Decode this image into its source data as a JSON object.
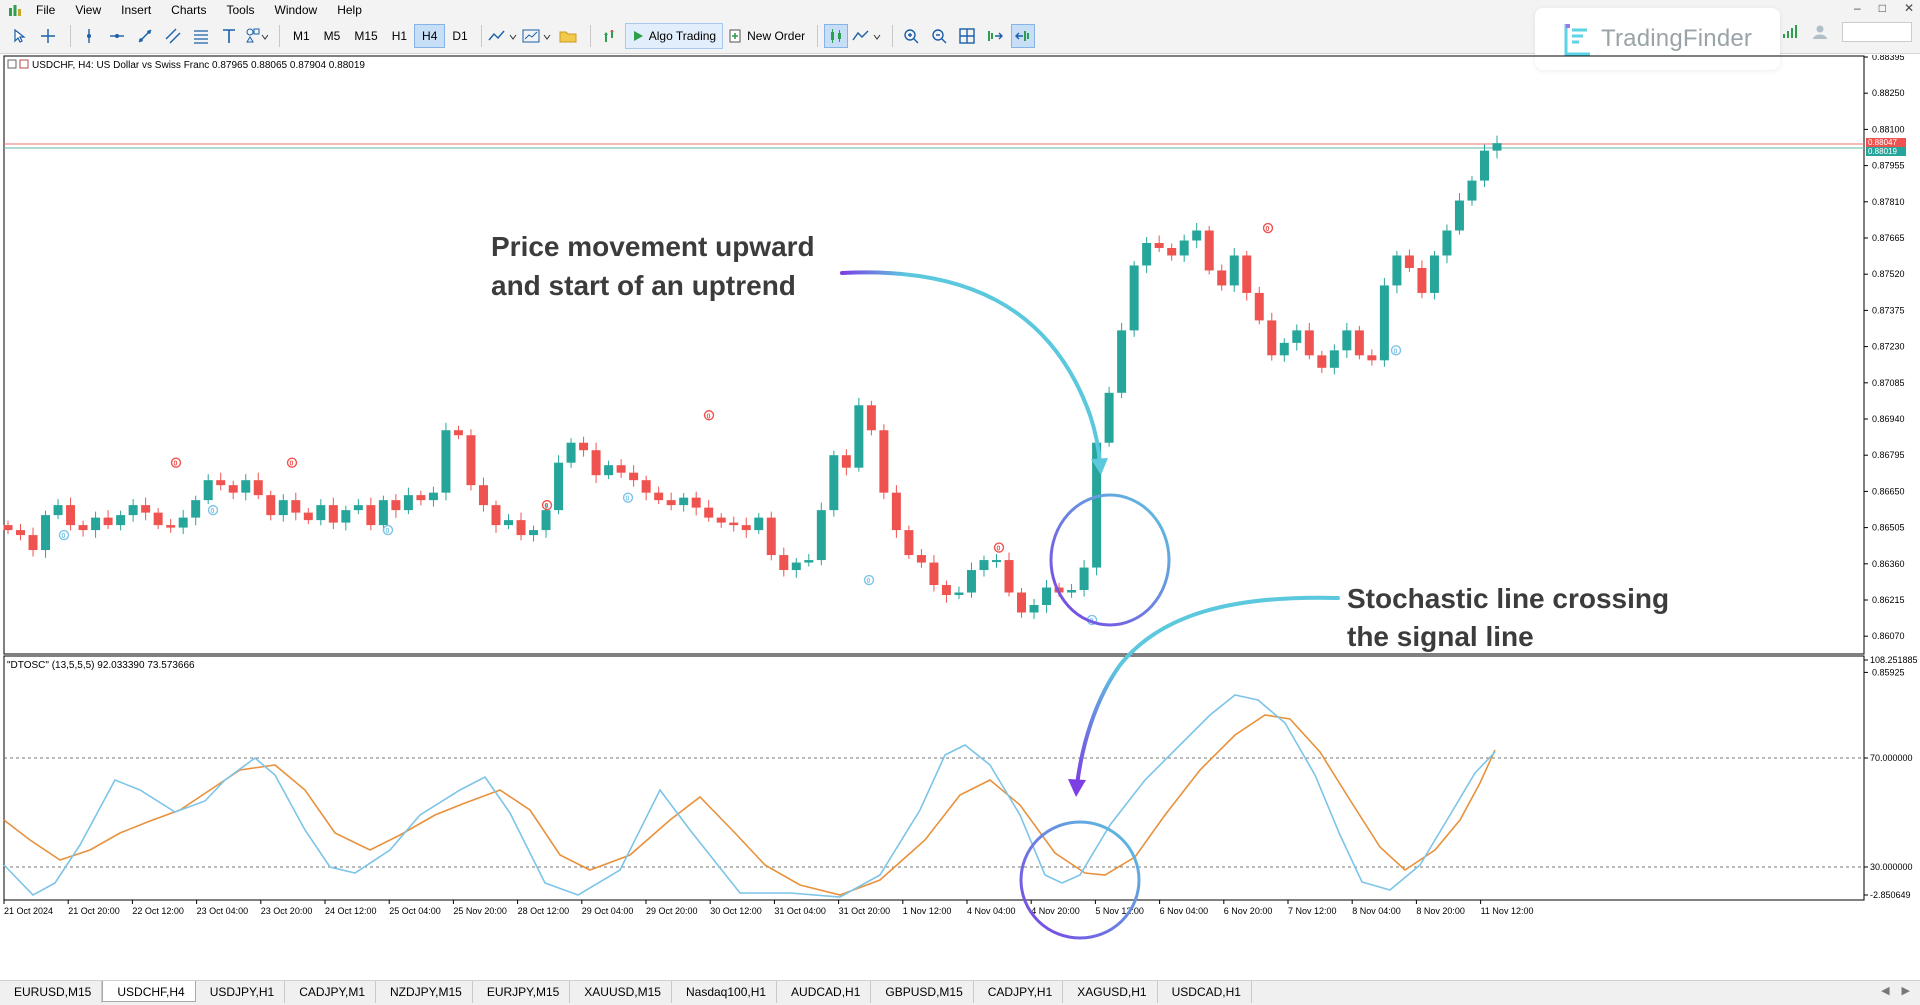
{
  "menu": {
    "items": [
      "File",
      "View",
      "Insert",
      "Charts",
      "Tools",
      "Window",
      "Help"
    ]
  },
  "toolbar": {
    "timeframes": [
      "M1",
      "M5",
      "M15",
      "H1",
      "H4",
      "D1"
    ],
    "active_timeframe": "H4",
    "algo_trading_label": "Algo Trading",
    "new_order_label": "New Order"
  },
  "logo": {
    "text": "TradingFinder"
  },
  "chart": {
    "symbol_label": "USDCHF, H4:  US Dollar vs Swiss Franc  0.87965 0.88065 0.87904 0.88019",
    "indicator_label": "\"DTOSC\" (13,5,5,5) 92.033390 73.573666",
    "price_axis": [
      "0.88395",
      "0.88250",
      "0.88100",
      "0.87955",
      "0.87810",
      "0.87665",
      "0.87520",
      "0.87375",
      "0.87230",
      "0.87085",
      "0.86940",
      "0.86795",
      "0.86650",
      "0.86505",
      "0.86360",
      "0.86215",
      "0.86070",
      "0.85925"
    ],
    "price_tags": {
      "ask": "0.88047",
      "bid": "0.88019"
    },
    "osc_axis": [
      "108.251885",
      "70.000000",
      "30.000000",
      "-2.850649"
    ],
    "time_axis": [
      "21 Oct 2024",
      "21 Oct 20:00",
      "22 Oct 12:00",
      "23 Oct 04:00",
      "23 Oct 20:00",
      "24 Oct 12:00",
      "25 Oct 04:00",
      "25 Nov 20:00",
      "28 Oct 12:00",
      "29 Oct 04:00",
      "29 Oct 20:00",
      "30 Oct 12:00",
      "31 Oct 04:00",
      "31 Oct 20:00",
      "1 Nov 12:00",
      "4 Nov 04:00",
      "4 Nov 20:00",
      "5 Nov 12:00",
      "6 Nov 04:00",
      "6 Nov 20:00",
      "7 Nov 12:00",
      "8 Nov 04:00",
      "8 Nov 20:00",
      "11 Nov 12:00"
    ],
    "signal_marker": "0",
    "annotation_price": [
      "Price movement upward",
      "and start of an uptrend"
    ],
    "annotation_osc": [
      "Stochastic line crossing",
      "the signal line"
    ],
    "colors": {
      "bull": "#26a69a",
      "bear": "#ef5350",
      "stoch_line": "#7cc4e8",
      "signal_line": "#e8913c",
      "arrow_cyan": "#5bc8de",
      "arrow_purple": "#7b3fe4"
    }
  },
  "tabs": [
    "EURUSD,M15",
    "USDCHF,H4",
    "USDJPY,H1",
    "CADJPY,M1",
    "NZDJPY,M15",
    "EURJPY,M15",
    "XAUUSD,M15",
    "Nasdaq100,H1",
    "AUDCAD,H1",
    "GBPUSD,M15",
    "CADJPY,H1",
    "XAGUSD,H1",
    "USDCAD,H1"
  ],
  "active_tab": "USDCHF,H4"
}
